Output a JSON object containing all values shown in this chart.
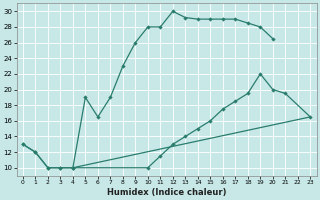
{
  "xlabel": "Humidex (Indice chaleur)",
  "background_color": "#c8e8e8",
  "grid_color": "#ffffff",
  "line_color": "#2a7d6d",
  "xlim": [
    -0.5,
    23.5
  ],
  "ylim": [
    9.0,
    31.0
  ],
  "xticks": [
    0,
    1,
    2,
    3,
    4,
    5,
    6,
    7,
    8,
    9,
    10,
    11,
    12,
    13,
    14,
    15,
    16,
    17,
    18,
    19,
    20,
    21,
    22,
    23
  ],
  "yticks": [
    10,
    12,
    14,
    16,
    18,
    20,
    22,
    24,
    26,
    28,
    30
  ],
  "curve1_x": [
    0,
    1,
    2,
    3,
    4,
    5,
    6,
    7,
    8,
    9,
    10,
    11,
    12,
    13,
    14,
    15,
    16,
    17,
    18,
    19,
    20
  ],
  "curve1_y": [
    13,
    12,
    10,
    10,
    10,
    19,
    16.5,
    19,
    23,
    26,
    28,
    28,
    30,
    29.2,
    29,
    29,
    29,
    29,
    28.5,
    28,
    26.5
  ],
  "curve2_x": [
    4,
    10,
    11,
    12,
    13,
    14,
    15,
    16,
    17,
    18,
    19,
    20,
    21,
    23
  ],
  "curve2_y": [
    10,
    10,
    11.5,
    13,
    14,
    15,
    16,
    17.5,
    18.5,
    19.5,
    22,
    20,
    19.5,
    16.5
  ],
  "curve3_x": [
    4,
    23
  ],
  "curve3_y": [
    10,
    16.5
  ],
  "shared_x": [
    0,
    1,
    2,
    3,
    4
  ],
  "shared_y": [
    13,
    12,
    10,
    10,
    10
  ]
}
